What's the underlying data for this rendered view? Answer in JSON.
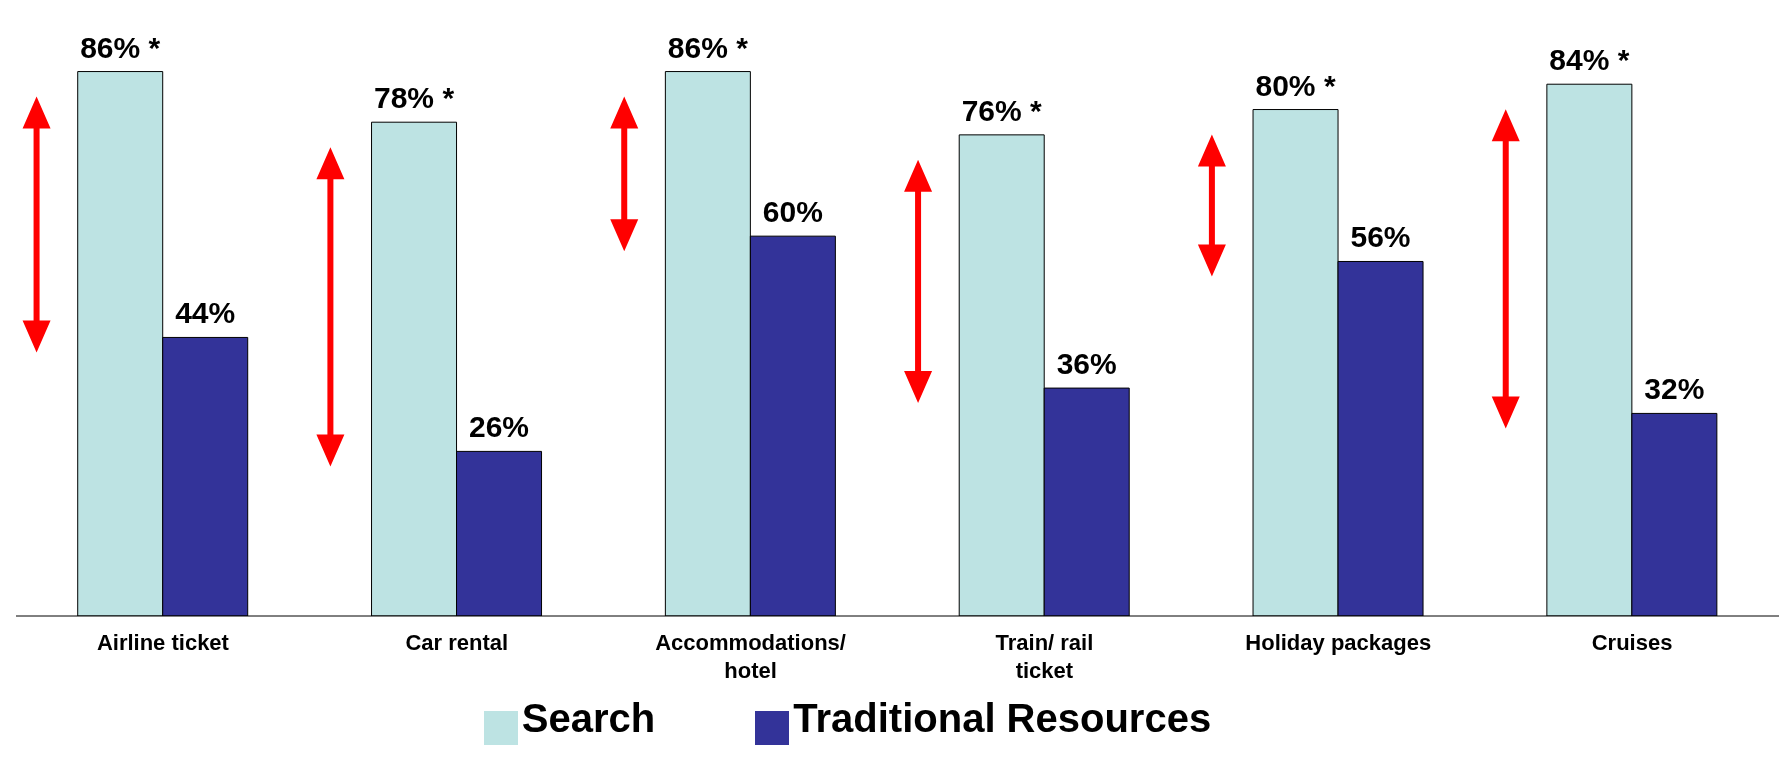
{
  "chart_data": {
    "type": "bar",
    "categories": [
      "Airline ticket",
      "Car rental",
      "Accommodations/ hotel",
      "Train/ rail ticket",
      "Holiday packages",
      "Cruises"
    ],
    "series": [
      {
        "name": "Search",
        "color": "#bde3e3",
        "values": [
          86,
          78,
          86,
          76,
          80,
          84
        ],
        "value_labels": [
          "86% *",
          "78% *",
          "86% *",
          "76% *",
          "80% *",
          "84% *"
        ]
      },
      {
        "name": "Traditional Resources",
        "color": "#333399",
        "values": [
          44,
          26,
          60,
          36,
          56,
          32
        ],
        "value_labels": [
          "44%",
          "26%",
          "60%",
          "36%",
          "56%",
          "32%"
        ]
      }
    ],
    "legend": "bottom"
  }
}
